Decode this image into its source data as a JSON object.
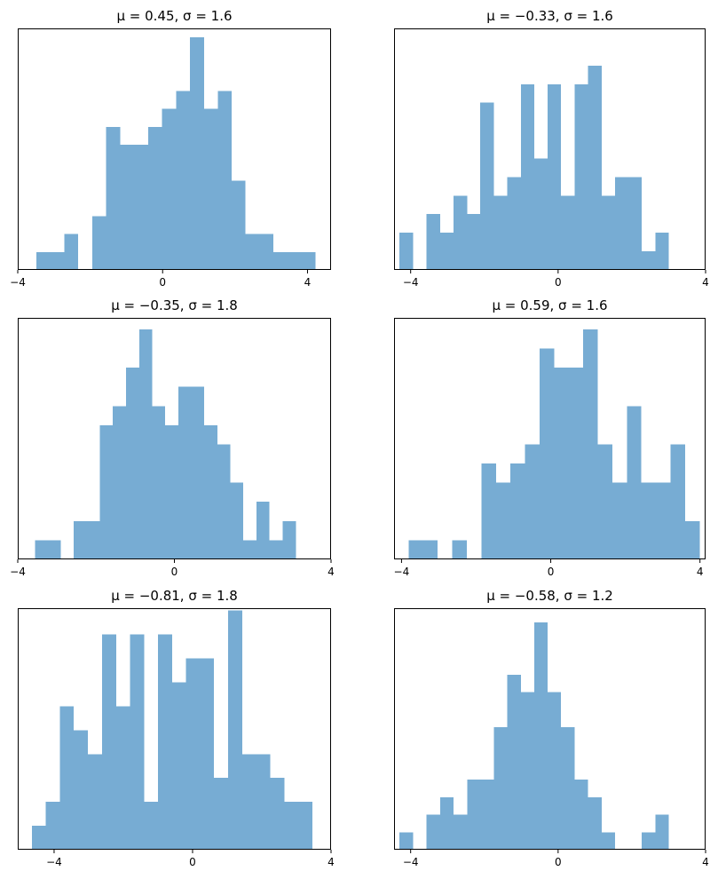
{
  "chart_data": [
    {
      "type": "bar",
      "title": "μ = 0.45,    σ = 1.6",
      "xlim": [
        -4,
        4.65
      ],
      "ylim": [
        0,
        13.5
      ],
      "xticks": [
        -4,
        0,
        4
      ],
      "xticklabels": [
        "−4",
        "0",
        "4"
      ],
      "yticks_visible": false,
      "color": "#77acd3",
      "bins": [
        {
          "x0": -3.48,
          "x1": -3.1,
          "h": 1
        },
        {
          "x0": -3.1,
          "x1": -2.71,
          "h": 1
        },
        {
          "x0": -2.71,
          "x1": -2.33,
          "h": 2
        },
        {
          "x0": -1.94,
          "x1": -1.56,
          "h": 3
        },
        {
          "x0": -1.56,
          "x1": -1.17,
          "h": 8
        },
        {
          "x0": -1.17,
          "x1": -0.79,
          "h": 7
        },
        {
          "x0": -0.79,
          "x1": -0.4,
          "h": 7
        },
        {
          "x0": -0.4,
          "x1": -0.02,
          "h": 8
        },
        {
          "x0": -0.02,
          "x1": 0.37,
          "h": 9
        },
        {
          "x0": 0.37,
          "x1": 0.75,
          "h": 10
        },
        {
          "x0": 0.75,
          "x1": 1.14,
          "h": 13
        },
        {
          "x0": 1.14,
          "x1": 1.52,
          "h": 9
        },
        {
          "x0": 1.52,
          "x1": 1.91,
          "h": 10
        },
        {
          "x0": 1.91,
          "x1": 2.29,
          "h": 5
        },
        {
          "x0": 2.29,
          "x1": 2.68,
          "h": 2
        },
        {
          "x0": 2.68,
          "x1": 3.06,
          "h": 2
        },
        {
          "x0": 3.06,
          "x1": 3.45,
          "h": 1
        },
        {
          "x0": 3.45,
          "x1": 3.83,
          "h": 1
        },
        {
          "x0": 3.83,
          "x1": 4.22,
          "h": 1
        }
      ]
    },
    {
      "type": "bar",
      "title": "μ = −0.33,    σ = 1.6",
      "xlim": [
        -4.45,
        4
      ],
      "ylim": [
        0,
        13
      ],
      "xticks": [
        -4,
        0,
        4
      ],
      "xticklabels": [
        "−4",
        "0",
        "4"
      ],
      "yticks_visible": false,
      "color": "#77acd3",
      "bins": [
        {
          "x0": -4.3,
          "x1": -3.93,
          "h": 2
        },
        {
          "x0": -3.57,
          "x1": -3.2,
          "h": 3
        },
        {
          "x0": -3.2,
          "x1": -2.84,
          "h": 2
        },
        {
          "x0": -2.84,
          "x1": -2.47,
          "h": 4
        },
        {
          "x0": -2.47,
          "x1": -2.11,
          "h": 3
        },
        {
          "x0": -2.11,
          "x1": -1.74,
          "h": 9
        },
        {
          "x0": -1.74,
          "x1": -1.38,
          "h": 4
        },
        {
          "x0": -1.38,
          "x1": -1.01,
          "h": 5
        },
        {
          "x0": -1.01,
          "x1": -0.65,
          "h": 10
        },
        {
          "x0": -0.65,
          "x1": -0.28,
          "h": 6
        },
        {
          "x0": -0.28,
          "x1": 0.08,
          "h": 10
        },
        {
          "x0": 0.08,
          "x1": 0.45,
          "h": 4
        },
        {
          "x0": 0.45,
          "x1": 0.81,
          "h": 10
        },
        {
          "x0": 0.81,
          "x1": 1.18,
          "h": 11
        },
        {
          "x0": 1.18,
          "x1": 1.54,
          "h": 4
        },
        {
          "x0": 1.54,
          "x1": 1.91,
          "h": 5
        },
        {
          "x0": 1.91,
          "x1": 2.27,
          "h": 5
        },
        {
          "x0": 2.27,
          "x1": 2.64,
          "h": 1
        },
        {
          "x0": 2.64,
          "x1": 3.0,
          "h": 2
        }
      ]
    },
    {
      "type": "bar",
      "title": "μ = −0.35,    σ = 1.8",
      "xlim": [
        -4,
        4
      ],
      "ylim": [
        0,
        12.6
      ],
      "xticks": [
        -4,
        0,
        4
      ],
      "xticklabels": [
        "−4",
        "0",
        "4"
      ],
      "yticks_visible": false,
      "color": "#77acd3",
      "bins": [
        {
          "x0": -3.56,
          "x1": -2.9,
          "h": 1
        },
        {
          "x0": -2.57,
          "x1": -1.9,
          "h": 2
        },
        {
          "x0": -1.9,
          "x1": -1.57,
          "h": 7
        },
        {
          "x0": -1.57,
          "x1": -1.24,
          "h": 8
        },
        {
          "x0": -1.24,
          "x1": -0.9,
          "h": 10
        },
        {
          "x0": -0.9,
          "x1": -0.57,
          "h": 12
        },
        {
          "x0": -0.57,
          "x1": -0.24,
          "h": 8
        },
        {
          "x0": -0.24,
          "x1": 0.1,
          "h": 7
        },
        {
          "x0": 0.1,
          "x1": 0.43,
          "h": 9
        },
        {
          "x0": 0.43,
          "x1": 0.76,
          "h": 9
        },
        {
          "x0": 0.76,
          "x1": 1.1,
          "h": 7
        },
        {
          "x0": 1.1,
          "x1": 1.43,
          "h": 6
        },
        {
          "x0": 1.43,
          "x1": 1.76,
          "h": 4
        },
        {
          "x0": 1.76,
          "x1": 2.1,
          "h": 1
        },
        {
          "x0": 2.1,
          "x1": 2.43,
          "h": 3
        },
        {
          "x0": 2.43,
          "x1": 2.76,
          "h": 1
        },
        {
          "x0": 2.76,
          "x1": 3.1,
          "h": 2
        }
      ]
    },
    {
      "type": "bar",
      "title": "μ = 0.59,    σ = 1.6",
      "xlim": [
        -4.2,
        4.15
      ],
      "ylim": [
        0,
        12.6
      ],
      "xticks": [
        -4,
        0,
        4
      ],
      "xticklabels": [
        "−4",
        "0",
        "4"
      ],
      "yticks_visible": false,
      "color": "#77acd3",
      "bins": [
        {
          "x0": -3.81,
          "x1": -3.03,
          "h": 1
        },
        {
          "x0": -2.64,
          "x1": -2.25,
          "h": 1
        },
        {
          "x0": -1.86,
          "x1": -1.47,
          "h": 5
        },
        {
          "x0": -1.47,
          "x1": -1.08,
          "h": 4
        },
        {
          "x0": -1.08,
          "x1": -0.69,
          "h": 5
        },
        {
          "x0": -0.69,
          "x1": -0.3,
          "h": 6
        },
        {
          "x0": -0.3,
          "x1": 0.09,
          "h": 11
        },
        {
          "x0": 0.09,
          "x1": 0.48,
          "h": 10
        },
        {
          "x0": 0.48,
          "x1": 0.87,
          "h": 10
        },
        {
          "x0": 0.87,
          "x1": 1.26,
          "h": 12
        },
        {
          "x0": 1.26,
          "x1": 1.65,
          "h": 6
        },
        {
          "x0": 1.65,
          "x1": 2.04,
          "h": 4
        },
        {
          "x0": 2.04,
          "x1": 2.43,
          "h": 8
        },
        {
          "x0": 2.43,
          "x1": 2.82,
          "h": 4
        },
        {
          "x0": 2.82,
          "x1": 3.21,
          "h": 4
        },
        {
          "x0": 3.21,
          "x1": 3.6,
          "h": 6
        },
        {
          "x0": 3.6,
          "x1": 3.99,
          "h": 2
        }
      ]
    },
    {
      "type": "bar",
      "title": "μ = −0.81,    σ = 1.8",
      "xlim": [
        -5.05,
        4
      ],
      "ylim": [
        0,
        10.1
      ],
      "xticks": [
        -4,
        0,
        4
      ],
      "xticklabels": [
        "−4",
        "0",
        "4"
      ],
      "yticks_visible": false,
      "color": "#77acd3",
      "bins": [
        {
          "x0": -4.64,
          "x1": -4.24,
          "h": 1
        },
        {
          "x0": -4.24,
          "x1": -3.83,
          "h": 2
        },
        {
          "x0": -3.83,
          "x1": -3.43,
          "h": 6
        },
        {
          "x0": -3.43,
          "x1": -3.02,
          "h": 5
        },
        {
          "x0": -3.02,
          "x1": -2.62,
          "h": 4
        },
        {
          "x0": -2.62,
          "x1": -2.21,
          "h": 9
        },
        {
          "x0": -2.21,
          "x1": -1.81,
          "h": 6
        },
        {
          "x0": -1.81,
          "x1": -1.4,
          "h": 9
        },
        {
          "x0": -1.4,
          "x1": -1.0,
          "h": 2
        },
        {
          "x0": -1.0,
          "x1": -0.59,
          "h": 9
        },
        {
          "x0": -0.59,
          "x1": -0.19,
          "h": 7
        },
        {
          "x0": -0.19,
          "x1": 0.22,
          "h": 8
        },
        {
          "x0": 0.22,
          "x1": 0.62,
          "h": 8
        },
        {
          "x0": 0.62,
          "x1": 1.03,
          "h": 3
        },
        {
          "x0": 1.03,
          "x1": 1.43,
          "h": 10
        },
        {
          "x0": 1.43,
          "x1": 1.84,
          "h": 4
        },
        {
          "x0": 1.84,
          "x1": 2.24,
          "h": 4
        },
        {
          "x0": 2.24,
          "x1": 2.65,
          "h": 3
        },
        {
          "x0": 2.65,
          "x1": 3.05,
          "h": 2
        },
        {
          "x0": 3.05,
          "x1": 3.46,
          "h": 2
        }
      ]
    },
    {
      "type": "bar",
      "title": "μ = −0.58,    σ = 1.2",
      "xlim": [
        -4.45,
        4
      ],
      "ylim": [
        0,
        13.8
      ],
      "xticks": [
        -4,
        0,
        4
      ],
      "xticklabels": [
        "−4",
        "0",
        "4"
      ],
      "yticks_visible": false,
      "color": "#77acd3",
      "bins": [
        {
          "x0": -4.3,
          "x1": -3.93,
          "h": 1
        },
        {
          "x0": -3.57,
          "x1": -3.2,
          "h": 2
        },
        {
          "x0": -3.2,
          "x1": -2.84,
          "h": 3
        },
        {
          "x0": -2.84,
          "x1": -2.47,
          "h": 2
        },
        {
          "x0": -2.47,
          "x1": -1.74,
          "h": 4
        },
        {
          "x0": -1.74,
          "x1": -1.38,
          "h": 7
        },
        {
          "x0": -1.38,
          "x1": -1.01,
          "h": 10
        },
        {
          "x0": -1.01,
          "x1": -0.65,
          "h": 9
        },
        {
          "x0": -0.65,
          "x1": -0.28,
          "h": 13
        },
        {
          "x0": -0.28,
          "x1": 0.08,
          "h": 9
        },
        {
          "x0": 0.08,
          "x1": 0.45,
          "h": 7
        },
        {
          "x0": 0.45,
          "x1": 0.81,
          "h": 4
        },
        {
          "x0": 0.81,
          "x1": 1.18,
          "h": 3
        },
        {
          "x0": 1.18,
          "x1": 1.54,
          "h": 1
        },
        {
          "x0": 2.27,
          "x1": 2.64,
          "h": 1
        },
        {
          "x0": 2.64,
          "x1": 3.0,
          "h": 2
        }
      ]
    }
  ]
}
